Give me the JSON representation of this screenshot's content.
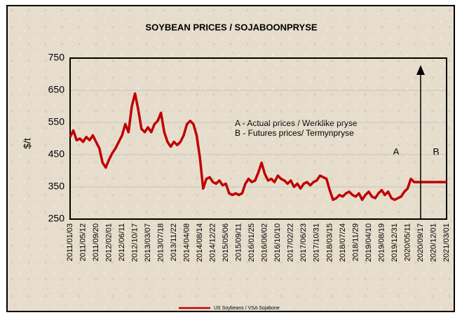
{
  "chart_data": {
    "type": "line",
    "title": "SOYBEAN PRICES / SOJABOONPRYSE",
    "y_label": "$/t",
    "annotations": [
      "A - Actual prices / Werklike pryse",
      "B - Futures prices/ Termynpryse",
      "A",
      "B"
    ],
    "categories": [
      "2011/01/03",
      null,
      null,
      null,
      "2011/05/12",
      null,
      null,
      null,
      "2011/09/20",
      null,
      null,
      null,
      "2012/02/01",
      null,
      null,
      null,
      "2012/06/11",
      null,
      null,
      null,
      "2012/10/17",
      null,
      null,
      null,
      "2013/03/07",
      null,
      null,
      null,
      "2013/07/18",
      null,
      null,
      null,
      "2013/11/22",
      null,
      null,
      null,
      "2014/04/08",
      null,
      null,
      null,
      "2014/08/14",
      null,
      null,
      null,
      "2014/12/22",
      null,
      null,
      null,
      "2015/05/06",
      null,
      null,
      null,
      "2015/09/11",
      null,
      null,
      null,
      "2016/01/25",
      null,
      null,
      null,
      "2016/06/02",
      null,
      null,
      null,
      "2016/10/10",
      null,
      null,
      null,
      "2017/02/22",
      null,
      null,
      null,
      "2017/06/23",
      null,
      null,
      null,
      "2017/10/31",
      null,
      null,
      null,
      "2018/03/15",
      null,
      null,
      null,
      "2018/07/24",
      null,
      null,
      null,
      "2018/11/29",
      null,
      null,
      null,
      "2019/04/10",
      null,
      null,
      null,
      "2019/08/19",
      null,
      null,
      null,
      "2019/12/31",
      null,
      null,
      null,
      "2020/05/11",
      null,
      null,
      null,
      "2020/09/17",
      null,
      null,
      null,
      "2020/12/01",
      null,
      null,
      null,
      "2021/03/01"
    ],
    "series": [
      {
        "name": "US Soybeans / VSA Sojabone",
        "color": "#c00000",
        "values": [
          505,
          525,
          495,
          500,
          490,
          505,
          495,
          510,
          490,
          470,
          425,
          410,
          435,
          455,
          470,
          490,
          510,
          545,
          520,
          600,
          640,
          590,
          530,
          520,
          535,
          520,
          545,
          555,
          580,
          520,
          490,
          475,
          490,
          480,
          490,
          510,
          545,
          555,
          545,
          510,
          440,
          345,
          375,
          380,
          365,
          360,
          370,
          355,
          360,
          330,
          325,
          330,
          325,
          330,
          360,
          375,
          365,
          370,
          395,
          425,
          390,
          370,
          375,
          365,
          385,
          375,
          370,
          360,
          370,
          350,
          360,
          345,
          360,
          365,
          355,
          365,
          370,
          385,
          380,
          375,
          340,
          310,
          315,
          325,
          320,
          330,
          335,
          325,
          320,
          330,
          310,
          325,
          335,
          320,
          315,
          330,
          340,
          325,
          335,
          315,
          310,
          315,
          320,
          335,
          345,
          375,
          365,
          365,
          365,
          365,
          365,
          365,
          365,
          365,
          365,
          365,
          365
        ]
      }
    ],
    "ylim": [
      250,
      750
    ],
    "yticks": [
      250,
      350,
      450,
      550,
      650,
      750
    ],
    "grid": true
  }
}
